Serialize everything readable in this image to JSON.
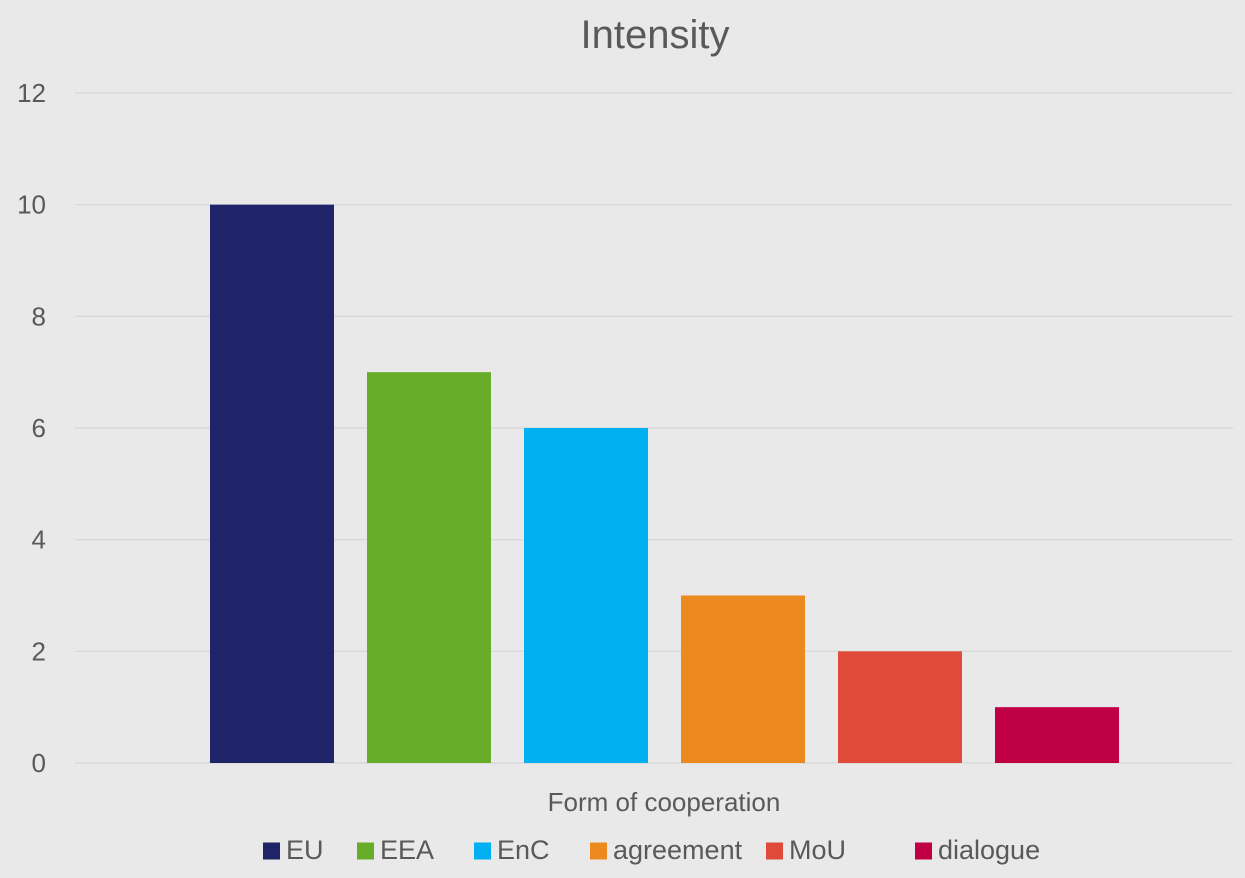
{
  "chart_data": {
    "type": "bar",
    "title": "Intensity",
    "xlabel": "Form of cooperation",
    "ylabel": "",
    "ylim": [
      0,
      12
    ],
    "yticks": [
      0,
      2,
      4,
      6,
      8,
      10,
      12
    ],
    "grid": true,
    "legend_position": "bottom",
    "categories": [
      ""
    ],
    "series": [
      {
        "name": "EU",
        "values": [
          10
        ],
        "color": "#1f2469"
      },
      {
        "name": "EEA",
        "values": [
          7
        ],
        "color": "#67ad29"
      },
      {
        "name": "EnC",
        "values": [
          6
        ],
        "color": "#00b0f0"
      },
      {
        "name": "agreement",
        "values": [
          3
        ],
        "color": "#ec8a1f"
      },
      {
        "name": "MoU",
        "values": [
          2
        ],
        "color": "#e04b39"
      },
      {
        "name": "dialogue",
        "values": [
          1
        ],
        "color": "#c00045"
      }
    ]
  }
}
